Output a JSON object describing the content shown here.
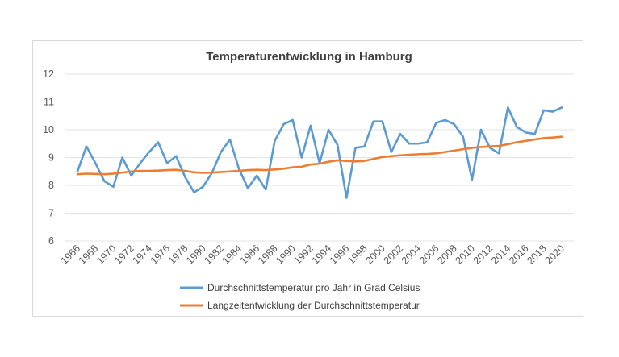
{
  "chart_data": {
    "type": "line",
    "title": "Temperaturentwicklung in Hamburg",
    "xlabel": "",
    "ylabel": "",
    "ylim": [
      6,
      12
    ],
    "yticks": [
      6,
      7,
      8,
      9,
      10,
      11,
      12
    ],
    "grid": true,
    "legend_position": "bottom",
    "x": [
      1966,
      1967,
      1968,
      1969,
      1970,
      1971,
      1972,
      1973,
      1974,
      1975,
      1976,
      1977,
      1978,
      1979,
      1980,
      1981,
      1982,
      1983,
      1984,
      1985,
      1986,
      1987,
      1988,
      1989,
      1990,
      1991,
      1992,
      1993,
      1994,
      1995,
      1996,
      1997,
      1998,
      1999,
      2000,
      2001,
      2002,
      2003,
      2004,
      2005,
      2006,
      2007,
      2008,
      2009,
      2010,
      2011,
      2012,
      2013,
      2014,
      2015,
      2016,
      2017,
      2018,
      2019,
      2020
    ],
    "xticks": [
      "1966",
      "1968",
      "1970",
      "1972",
      "1974",
      "1976",
      "1978",
      "1980",
      "1982",
      "1984",
      "1986",
      "1988",
      "1990",
      "1992",
      "1994",
      "1996",
      "1998",
      "2000",
      "2002",
      "2004",
      "2006",
      "2008",
      "2010",
      "2012",
      "2014",
      "2016",
      "2018",
      "2020"
    ],
    "series": [
      {
        "name": "Durchschnittstemperatur pro Jahr in Grad Celsius",
        "color": "#5b9bd5",
        "values": [
          8.5,
          9.4,
          8.8,
          8.15,
          7.95,
          9.0,
          8.35,
          8.8,
          9.2,
          9.55,
          8.8,
          9.05,
          8.3,
          7.75,
          7.95,
          8.45,
          9.2,
          9.65,
          8.6,
          7.9,
          8.35,
          7.85,
          9.6,
          10.2,
          10.35,
          9.0,
          10.15,
          8.8,
          10.0,
          9.45,
          7.55,
          9.35,
          9.4,
          10.3,
          10.3,
          9.2,
          9.85,
          9.5,
          9.5,
          9.55,
          10.25,
          10.35,
          10.2,
          9.75,
          8.2,
          10.0,
          9.35,
          9.15,
          10.8,
          10.1,
          9.9,
          9.85,
          10.7,
          10.65,
          10.8
        ]
      },
      {
        "name": "Langzeitentwicklung der Durchschnittstemperatur",
        "color": "#ed7d31",
        "values": [
          8.4,
          8.42,
          8.41,
          8.4,
          8.42,
          8.46,
          8.5,
          8.52,
          8.52,
          8.53,
          8.55,
          8.56,
          8.52,
          8.47,
          8.45,
          8.46,
          8.48,
          8.5,
          8.52,
          8.55,
          8.56,
          8.55,
          8.57,
          8.6,
          8.65,
          8.67,
          8.75,
          8.78,
          8.85,
          8.9,
          8.88,
          8.86,
          8.88,
          8.95,
          9.02,
          9.05,
          9.08,
          9.1,
          9.12,
          9.13,
          9.15,
          9.2,
          9.25,
          9.3,
          9.35,
          9.38,
          9.4,
          9.42,
          9.48,
          9.55,
          9.6,
          9.65,
          9.7,
          9.72,
          9.75
        ]
      }
    ]
  }
}
